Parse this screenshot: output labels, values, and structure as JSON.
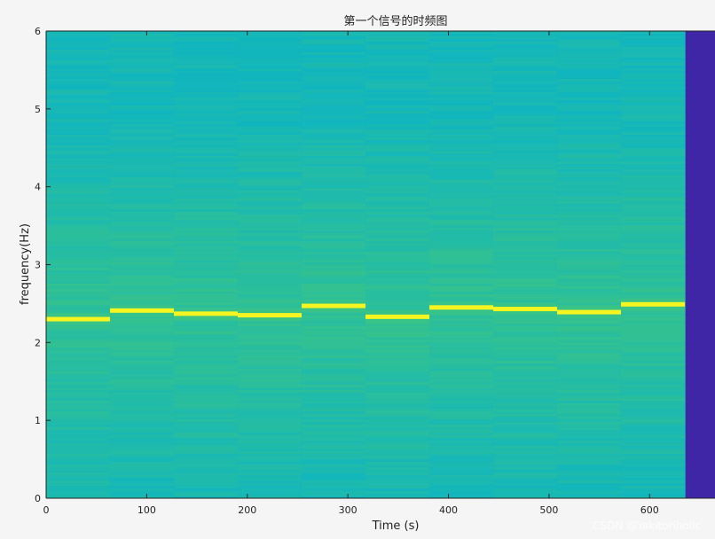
{
  "chart_data": {
    "type": "heatmap",
    "title": "第一个信号的时频图",
    "xlabel": "Time (s)",
    "ylabel": "frequency(Hz)",
    "xlim": [
      0,
      665
    ],
    "ylim": [
      0,
      6
    ],
    "xticks": [
      0,
      100,
      200,
      300,
      400,
      500,
      600
    ],
    "yticks": [
      0,
      1,
      2,
      3,
      4,
      5,
      6
    ],
    "grid": false,
    "segment_duration": 63.5,
    "segments": [
      {
        "t_start": 0,
        "t_end": 63.5,
        "peak_freq": 2.3
      },
      {
        "t_start": 63.5,
        "t_end": 127,
        "peak_freq": 2.41
      },
      {
        "t_start": 127,
        "t_end": 190.5,
        "peak_freq": 2.37
      },
      {
        "t_start": 190.5,
        "t_end": 254,
        "peak_freq": 2.35
      },
      {
        "t_start": 254,
        "t_end": 317.5,
        "peak_freq": 2.47
      },
      {
        "t_start": 317.5,
        "t_end": 381,
        "peak_freq": 2.33
      },
      {
        "t_start": 381,
        "t_end": 444.5,
        "peak_freq": 2.45
      },
      {
        "t_start": 444.5,
        "t_end": 508,
        "peak_freq": 2.43
      },
      {
        "t_start": 508,
        "t_end": 571.5,
        "peak_freq": 2.39
      },
      {
        "t_start": 571.5,
        "t_end": 635,
        "peak_freq": 2.49
      }
    ],
    "empty_region": {
      "t_start": 635,
      "t_end": 665
    },
    "colors": {
      "low": "#3f26a6",
      "background": "#0fb5c0",
      "mid": "#3fc57f",
      "peak": "#f7f520"
    }
  },
  "watermark": "CSDN @Yakitoriholic"
}
